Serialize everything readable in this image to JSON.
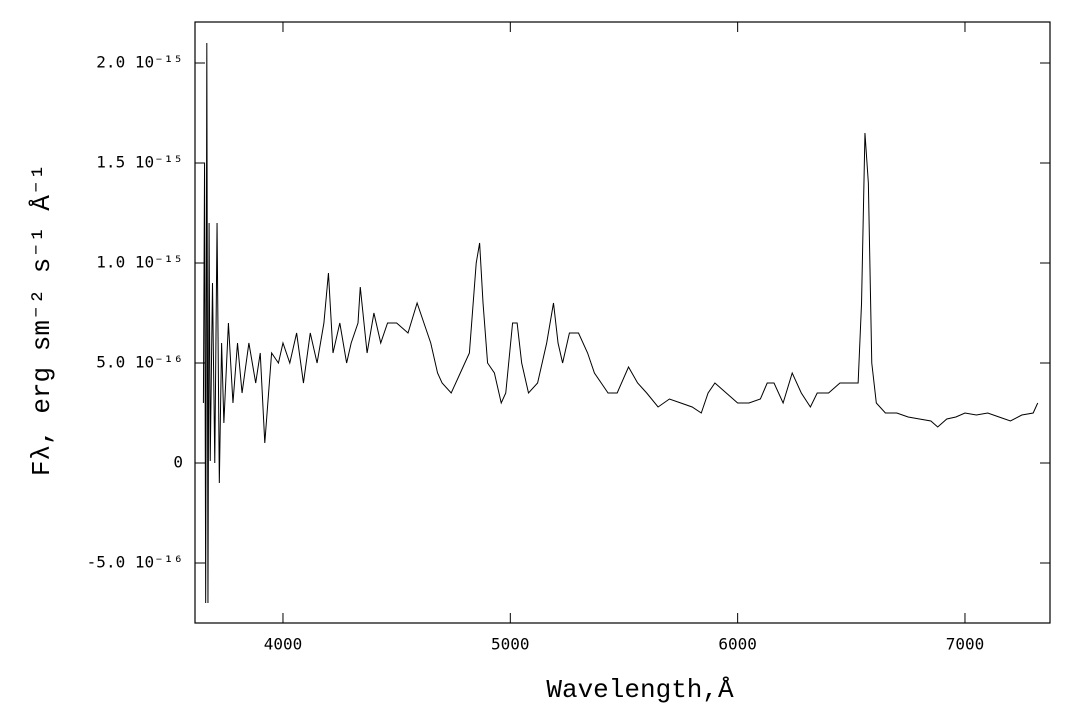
{
  "chart_data": {
    "type": "line",
    "x_label": "Wavelength,Å",
    "y_label": "Fλ, erg sm⁻² s⁻¹ Å⁻¹",
    "xlim": [
      3613,
      7374
    ],
    "ylim": [
      -8e-16,
      2.205e-15
    ],
    "xticks": [
      4000,
      5000,
      6000,
      7000
    ],
    "yticks": [
      {
        "value": -5e-16,
        "label": "-5.0 10⁻¹⁶"
      },
      0,
      {
        "value": 5e-16,
        "label": "5.0 10⁻¹⁶"
      },
      {
        "value": 1e-15,
        "label": "1.0 10⁻¹⁵"
      },
      {
        "value": 1.5e-15,
        "label": "1.5 10⁻¹⁵"
      },
      {
        "value": 2e-15,
        "label": "2.0 10⁻¹⁵"
      }
    ],
    "x": [
      3650,
      3655,
      3660,
      3665,
      3670,
      3675,
      3680,
      3690,
      3700,
      3710,
      3720,
      3730,
      3740,
      3760,
      3780,
      3800,
      3820,
      3850,
      3880,
      3900,
      3920,
      3950,
      3980,
      4000,
      4030,
      4060,
      4090,
      4120,
      4150,
      4180,
      4200,
      4220,
      4250,
      4280,
      4300,
      4330,
      4340,
      4370,
      4400,
      4430,
      4460,
      4500,
      4550,
      4590,
      4620,
      4650,
      4680,
      4700,
      4740,
      4780,
      4820,
      4850,
      4865,
      4880,
      4900,
      4930,
      4960,
      4980,
      5010,
      5030,
      5050,
      5080,
      5120,
      5160,
      5190,
      5210,
      5230,
      5260,
      5300,
      5340,
      5370,
      5400,
      5430,
      5470,
      5520,
      5560,
      5600,
      5650,
      5700,
      5750,
      5800,
      5840,
      5870,
      5900,
      5950,
      6000,
      6050,
      6100,
      6130,
      6160,
      6200,
      6240,
      6280,
      6320,
      6350,
      6400,
      6450,
      6500,
      6530,
      6545,
      6560,
      6575,
      6590,
      6610,
      6650,
      6700,
      6750,
      6800,
      6850,
      6880,
      6920,
      6960,
      7000,
      7050,
      7100,
      7150,
      7200,
      7250,
      7300,
      7320
    ],
    "series": [
      {
        "color": "#000000",
        "values": [
          3e-16,
          1.5e-15,
          -7e-16,
          2.1e-15,
          -7e-16,
          1.2e-15,
          1e-17,
          9e-16,
          0,
          1.2e-15,
          -1e-16,
          6e-16,
          2e-16,
          7e-16,
          3e-16,
          6e-16,
          3.5e-16,
          6e-16,
          4e-16,
          5.5e-16,
          1e-16,
          5.5e-16,
          5e-16,
          6e-16,
          5e-16,
          6.5e-16,
          4e-16,
          6.5e-16,
          5e-16,
          7e-16,
          9.5e-16,
          5.5e-16,
          7e-16,
          5e-16,
          6e-16,
          7e-16,
          8.8e-16,
          5.5e-16,
          7.5e-16,
          6e-16,
          7e-16,
          7e-16,
          6.5e-16,
          8e-16,
          7e-16,
          6e-16,
          4.5e-16,
          4e-16,
          3.5e-16,
          4.5e-16,
          5.5e-16,
          1e-15,
          1.1e-15,
          8e-16,
          5e-16,
          4.5e-16,
          3e-16,
          3.5e-16,
          7e-16,
          7e-16,
          5e-16,
          3.5e-16,
          4e-16,
          6e-16,
          8e-16,
          6e-16,
          5e-16,
          6.5e-16,
          6.5e-16,
          5.5e-16,
          4.5e-16,
          4e-16,
          3.5e-16,
          3.5e-16,
          4.8e-16,
          4e-16,
          3.5e-16,
          2.8e-16,
          3.2e-16,
          3e-16,
          2.8e-16,
          2.5e-16,
          3.5e-16,
          4e-16,
          3.5e-16,
          3e-16,
          3e-16,
          3.2e-16,
          4e-16,
          4e-16,
          3e-16,
          4.5e-16,
          3.5e-16,
          2.8e-16,
          3.5e-16,
          3.5e-16,
          4e-16,
          4e-16,
          4e-16,
          8e-16,
          1.65e-15,
          1.4e-15,
          5e-16,
          3e-16,
          2.5e-16,
          2.5e-16,
          2.3e-16,
          2.2e-16,
          2.1e-16,
          1.8e-16,
          2.2e-16,
          2.3e-16,
          2.5e-16,
          2.4e-16,
          2.5e-16,
          2.3e-16,
          2.1e-16,
          2.4e-16,
          2.5e-16,
          3e-16
        ]
      }
    ]
  }
}
